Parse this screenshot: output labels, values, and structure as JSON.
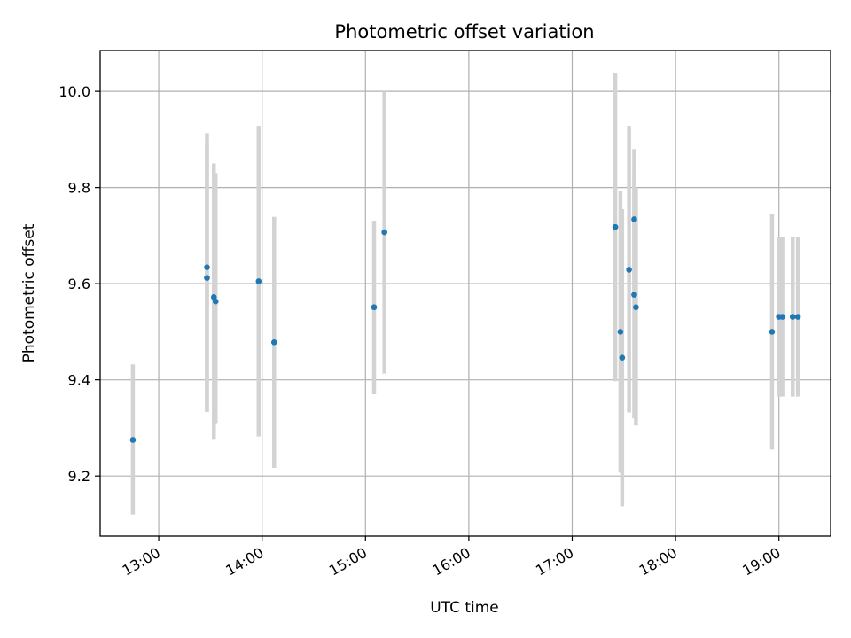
{
  "chart_data": {
    "type": "scatter",
    "title": "Photometric offset variation",
    "xlabel": "UTC time",
    "ylabel": "Photometric offset",
    "x_tick_labels": [
      "13:00",
      "14:00",
      "15:00",
      "16:00",
      "17:00",
      "18:00",
      "19:00"
    ],
    "y_tick_labels": [
      "9.2",
      "9.4",
      "9.6",
      "9.8",
      "10.0"
    ],
    "x_ticks": [
      "13:00",
      "14:00",
      "15:00",
      "16:00",
      "17:00",
      "18:00",
      "19:00"
    ],
    "y_ticks": [
      9.2,
      9.4,
      9.6,
      9.8,
      10.0
    ],
    "xlim": [
      "12:26",
      "19:30"
    ],
    "ylim": [
      9.075,
      10.085
    ],
    "grid": true,
    "point_color": "#1f77b4",
    "errorbar_color": "#d3d3d3",
    "points": [
      {
        "x": "12:45",
        "y": 9.275,
        "err_low": 9.12,
        "err_high": 9.432
      },
      {
        "x": "13:28",
        "y": 9.634,
        "err_low": 9.335,
        "err_high": 9.913
      },
      {
        "x": "13:28",
        "y": 9.612,
        "err_low": 9.333,
        "err_high": 9.892
      },
      {
        "x": "13:32",
        "y": 9.572,
        "err_low": 9.277,
        "err_high": 9.85
      },
      {
        "x": "13:33",
        "y": 9.563,
        "err_low": 9.31,
        "err_high": 9.83
      },
      {
        "x": "13:58",
        "y": 9.605,
        "err_low": 9.282,
        "err_high": 9.928
      },
      {
        "x": "14:07",
        "y": 9.478,
        "err_low": 9.217,
        "err_high": 9.739
      },
      {
        "x": "15:05",
        "y": 9.551,
        "err_low": 9.37,
        "err_high": 9.731
      },
      {
        "x": "15:11",
        "y": 9.707,
        "err_low": 9.413,
        "err_high": 10.0
      },
      {
        "x": "17:25",
        "y": 9.718,
        "err_low": 9.397,
        "err_high": 10.039
      },
      {
        "x": "17:28",
        "y": 9.5,
        "err_low": 9.207,
        "err_high": 9.793
      },
      {
        "x": "17:29",
        "y": 9.446,
        "err_low": 9.137,
        "err_high": 9.755
      },
      {
        "x": "17:33",
        "y": 9.629,
        "err_low": 9.332,
        "err_high": 9.928
      },
      {
        "x": "17:36",
        "y": 9.734,
        "err_low": 9.587,
        "err_high": 9.88
      },
      {
        "x": "17:36",
        "y": 9.577,
        "err_low": 9.32,
        "err_high": 9.825
      },
      {
        "x": "17:37",
        "y": 9.551,
        "err_low": 9.305,
        "err_high": 9.8
      },
      {
        "x": "18:56",
        "y": 9.5,
        "err_low": 9.255,
        "err_high": 9.745
      },
      {
        "x": "19:00",
        "y": 9.531,
        "err_low": 9.365,
        "err_high": 9.698
      },
      {
        "x": "19:02",
        "y": 9.531,
        "err_low": 9.365,
        "err_high": 9.698
      },
      {
        "x": "19:08",
        "y": 9.531,
        "err_low": 9.365,
        "err_high": 9.698
      },
      {
        "x": "19:11",
        "y": 9.531,
        "err_low": 9.365,
        "err_high": 9.698
      }
    ]
  }
}
